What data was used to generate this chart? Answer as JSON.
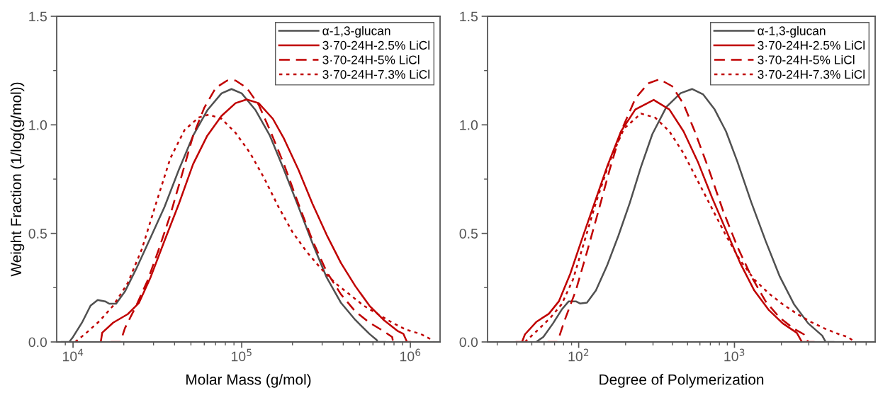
{
  "chart_data": [
    {
      "type": "line",
      "xlabel": "Molar Mass (g/mol)",
      "ylabel": "Weight Fraction (1/log(g/mol))",
      "log": "x",
      "xlim": [
        8000,
        1500000
      ],
      "ylim": [
        0,
        1.5
      ],
      "xticks": [
        {
          "value": 9000,
          "label": null
        },
        {
          "value": 10000,
          "label": "10$^{4}$"
        },
        {
          "value": 20000,
          "label": null
        },
        {
          "value": 30000,
          "label": null
        },
        {
          "value": 40000,
          "label": null
        },
        {
          "value": 50000,
          "label": null
        },
        {
          "value": 60000,
          "label": null
        },
        {
          "value": 70000,
          "label": null
        },
        {
          "value": 80000,
          "label": null
        },
        {
          "value": 90000,
          "label": null
        },
        {
          "value": 100000,
          "label": "10$^{5}$"
        },
        {
          "value": 200000,
          "label": null
        },
        {
          "value": 300000,
          "label": null
        },
        {
          "value": 400000,
          "label": null
        },
        {
          "value": 500000,
          "label": null
        },
        {
          "value": 600000,
          "label": null
        },
        {
          "value": 700000,
          "label": null
        },
        {
          "value": 800000,
          "label": null
        },
        {
          "value": 900000,
          "label": null
        },
        {
          "value": 1000000,
          "label": "10$^{6}$"
        }
      ],
      "yticks": [
        {
          "value": 0,
          "label": "0.0"
        },
        {
          "value": 0.25,
          "label": null
        },
        {
          "value": 0.5,
          "label": "0.5"
        },
        {
          "value": 0.75,
          "label": null
        },
        {
          "value": 1.0,
          "label": "1.0"
        },
        {
          "value": 1.25,
          "label": null
        },
        {
          "value": 1.5,
          "label": "1.5"
        }
      ],
      "grid": false,
      "legend": "top right",
      "series": [
        {
          "name": "α-1,3-glucan",
          "color": "#505050",
          "line_style": "solid",
          "x": [
            8570,
            9500,
            10000,
            11300,
            12700,
            14000,
            15500,
            16400,
            18000,
            20300,
            23700,
            28800,
            34900,
            42400,
            51500,
            62500,
            75900,
            87000,
            100000,
            121000,
            147000,
            178000,
            217000,
            263000,
            319000,
            388000,
            471000,
            572000,
            630000,
            640000,
            710000
          ],
          "values": [
            0,
            0,
            0.023,
            0.089,
            0.167,
            0.193,
            0.187,
            0.176,
            0.176,
            0.232,
            0.337,
            0.48,
            0.623,
            0.793,
            0.95,
            1.067,
            1.145,
            1.165,
            1.145,
            1.067,
            0.95,
            0.793,
            0.623,
            0.454,
            0.297,
            0.18,
            0.102,
            0.037,
            0.01,
            0,
            0
          ]
        },
        {
          "name": "3·70-24H-2.5% LiCl",
          "color": "#c00000",
          "line_style": "solid",
          "x": [
            14600,
            14900,
            17300,
            21100,
            24600,
            28800,
            34900,
            42400,
            51500,
            62500,
            75900,
            92000,
            107000,
            126000,
            153000,
            178000,
            217000,
            263000,
            319000,
            388000,
            471000,
            572000,
            693000,
            843000,
            910000,
            955000,
            1000000
          ],
          "values": [
            0,
            0.043,
            0.089,
            0.128,
            0.18,
            0.297,
            0.467,
            0.636,
            0.819,
            0.95,
            1.041,
            1.1,
            1.117,
            1.1,
            1.028,
            0.937,
            0.793,
            0.636,
            0.493,
            0.363,
            0.258,
            0.167,
            0.102,
            0.05,
            0.037,
            0,
            0
          ]
        },
        {
          "name": "3·70-24H-5% LiCl",
          "color": "#c00000",
          "line_style": "dashed",
          "x": [
            16700,
            19100,
            20300,
            23700,
            27700,
            32300,
            37700,
            44100,
            51500,
            60100,
            70300,
            82000,
            92000,
            107000,
            126000,
            147000,
            178000,
            217000,
            263000,
            319000,
            388000,
            471000,
            572000,
            693000,
            780000,
            790000
          ],
          "values": [
            0,
            0,
            0.063,
            0.167,
            0.284,
            0.428,
            0.584,
            0.767,
            0.95,
            1.08,
            1.171,
            1.204,
            1.204,
            1.171,
            1.093,
            0.976,
            0.819,
            0.636,
            0.467,
            0.323,
            0.219,
            0.141,
            0.089,
            0.05,
            0.023,
            0
          ]
        },
        {
          "name": "3·70-24H-7.3% LiCl",
          "color": "#c00000",
          "line_style": "dotted",
          "x": [
            10300,
            11800,
            14300,
            17300,
            21100,
            25600,
            31000,
            37700,
            45800,
            55600,
            63700,
            75900,
            92000,
            112000,
            136000,
            165000,
            200000,
            243000,
            296000,
            359000,
            436000,
            529000,
            643000,
            780000,
            947000,
            1150000,
            1340000,
            1370000
          ],
          "values": [
            0,
            0.037,
            0.095,
            0.167,
            0.271,
            0.428,
            0.636,
            0.845,
            0.976,
            1.034,
            1.047,
            1.028,
            0.963,
            0.871,
            0.754,
            0.623,
            0.506,
            0.415,
            0.337,
            0.271,
            0.219,
            0.167,
            0.128,
            0.089,
            0.056,
            0.037,
            0.01,
            0
          ]
        }
      ]
    },
    {
      "type": "line",
      "xlabel": "Degree of Polymerization",
      "log": "x",
      "xlim": [
        26,
        8000
      ],
      "ylim": [
        0,
        1.5
      ],
      "xticks": [
        {
          "value": 30,
          "label": null
        },
        {
          "value": 40,
          "label": null
        },
        {
          "value": 50,
          "label": null
        },
        {
          "value": 60,
          "label": null
        },
        {
          "value": 70,
          "label": null
        },
        {
          "value": 80,
          "label": null
        },
        {
          "value": 90,
          "label": null
        },
        {
          "value": 100,
          "label": "10$^{2}$"
        },
        {
          "value": 200,
          "label": null
        },
        {
          "value": 300,
          "label": null
        },
        {
          "value": 400,
          "label": null
        },
        {
          "value": 500,
          "label": null
        },
        {
          "value": 600,
          "label": null
        },
        {
          "value": 700,
          "label": null
        },
        {
          "value": 800,
          "label": null
        },
        {
          "value": 900,
          "label": null
        },
        {
          "value": 1000,
          "label": "10$^{3}$"
        },
        {
          "value": 2000,
          "label": null
        },
        {
          "value": 3000,
          "label": null
        },
        {
          "value": 4000,
          "label": null
        },
        {
          "value": 5000,
          "label": null
        },
        {
          "value": 6000,
          "label": null
        },
        {
          "value": 7000,
          "label": null
        }
      ],
      "yticks": [
        {
          "value": 0,
          "label": "0.0"
        },
        {
          "value": 0.25,
          "label": null
        },
        {
          "value": 0.5,
          "label": "0.5"
        },
        {
          "value": 0.75,
          "label": null
        },
        {
          "value": 1.0,
          "label": "1.0"
        },
        {
          "value": 1.25,
          "label": null
        },
        {
          "value": 1.5,
          "label": "1.5"
        }
      ],
      "grid": false,
      "legend": "top right",
      "series": [
        {
          "name": "α-1,3-glucan",
          "color": "#505050",
          "line_style": "solid",
          "x": [
            53.4,
            59.3,
            68.5,
            77.8,
            86.3,
            95.9,
            102,
            113,
            129,
            152,
            180,
            213,
            251,
            297,
            366,
            451,
            534,
            630,
            746,
            882,
            1043,
            1285,
            1585,
            1954,
            2410,
            2970,
            3660,
            3850,
            4330
          ],
          "values": [
            0,
            0.023,
            0.086,
            0.149,
            0.187,
            0.187,
            0.177,
            0.181,
            0.237,
            0.351,
            0.49,
            0.641,
            0.806,
            0.957,
            1.083,
            1.146,
            1.165,
            1.14,
            1.071,
            0.97,
            0.831,
            0.641,
            0.465,
            0.301,
            0.174,
            0.086,
            0.029,
            0,
            0
          ]
        },
        {
          "name": "3·70-24H-2.5% LiCl",
          "color": "#c00000",
          "line_style": "solid",
          "x": [
            39.8,
            43.3,
            45.2,
            53.4,
            64.4,
            74.6,
            88.2,
            104,
            123,
            152,
            187,
            231,
            303,
            382,
            471,
            581,
            716,
            882,
            1087,
            1340,
            1652,
            2037,
            2512,
            2710,
            3230
          ],
          "values": [
            0,
            0,
            0.035,
            0.092,
            0.13,
            0.187,
            0.313,
            0.465,
            0.616,
            0.806,
            0.97,
            1.071,
            1.115,
            1.071,
            0.97,
            0.831,
            0.667,
            0.515,
            0.364,
            0.237,
            0.149,
            0.086,
            0.042,
            0,
            0
          ]
        },
        {
          "name": "3·70-24H-5% LiCl",
          "color": "#c00000",
          "line_style": "dashed",
          "x": [
            63,
            73.1,
            81.1,
            95.9,
            113,
            134,
            158,
            187,
            231,
            279,
            330,
            398,
            471,
            556,
            686,
            845,
            1043,
            1285,
            1585,
            1954,
            2410,
            2790,
            2970
          ],
          "values": [
            0,
            0,
            0.098,
            0.237,
            0.414,
            0.604,
            0.793,
            0.97,
            1.121,
            1.191,
            1.21,
            1.178,
            1.096,
            0.97,
            0.793,
            0.604,
            0.439,
            0.301,
            0.187,
            0.111,
            0.061,
            0.035,
            0
          ]
        },
        {
          "name": "3·70-24H-7.3% LiCl",
          "color": "#c00000",
          "line_style": "dotted",
          "x": [
            45.2,
            53.4,
            65.8,
            77.8,
            92,
            109,
            129,
            158,
            195,
            251,
            310,
            382,
            471,
            581,
            716,
            882,
            1087,
            1340,
            1652,
            2037,
            2512,
            3097,
            3820,
            4710,
            5330,
            5930
          ],
          "values": [
            0,
            0.048,
            0.111,
            0.174,
            0.288,
            0.465,
            0.641,
            0.831,
            0.982,
            1.052,
            1.033,
            0.97,
            0.869,
            0.742,
            0.616,
            0.49,
            0.376,
            0.288,
            0.225,
            0.174,
            0.13,
            0.092,
            0.061,
            0.035,
            0.023,
            0
          ]
        }
      ]
    }
  ]
}
